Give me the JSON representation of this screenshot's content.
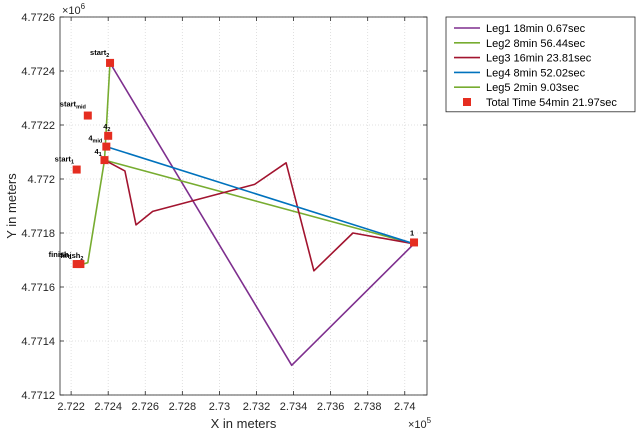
{
  "chart_data": {
    "type": "line",
    "xlabel": "X in meters",
    "ylabel": "Y in meters",
    "x_exponent": "×10",
    "x_exponent_power": "5",
    "y_exponent": "×10",
    "y_exponent_power": "6",
    "xlim": [
      2.7214,
      2.7412
    ],
    "ylim": [
      4.7712,
      4.7726
    ],
    "grid": true,
    "x_ticks": [
      2.722,
      2.724,
      2.726,
      2.728,
      2.73,
      2.732,
      2.734,
      2.736,
      2.738,
      2.74
    ],
    "x_tick_labels": [
      "2.722",
      "2.724",
      "2.726",
      "2.728",
      "2.73",
      "2.732",
      "2.734",
      "2.736",
      "2.738",
      "2.74"
    ],
    "y_ticks": [
      4.7712,
      4.7714,
      4.7716,
      4.7718,
      4.772,
      4.7722,
      4.7724,
      4.7726
    ],
    "y_tick_labels": [
      "4.7712",
      "4.7714",
      "4.7716",
      "4.7718",
      "4.772",
      "4.7722",
      "4.7724",
      "4.7726"
    ],
    "legend_position": "top-right",
    "series": [
      {
        "name": "Leg1 18min 0.67sec",
        "color": "#7e2f8e",
        "x": [
          2.7241,
          2.7339,
          2.7405
        ],
        "y": [
          4.77243,
          4.77131,
          4.77176
        ]
      },
      {
        "name": "Leg2 8min 56.44sec",
        "color": "#77ac30",
        "x": [
          2.7405,
          2.7238,
          2.7241
        ],
        "y": [
          4.77176,
          4.77207,
          4.77243
        ]
      },
      {
        "name": "Leg3 16min 23.81sec",
        "color": "#a2142f",
        "x": [
          2.7238,
          2.7249,
          2.7255,
          2.7264,
          2.7319,
          2.7336,
          2.7351,
          2.7372,
          2.7405
        ],
        "y": [
          4.77207,
          4.77203,
          4.77183,
          4.77188,
          4.77198,
          4.77206,
          4.77166,
          4.7718,
          4.77176
        ]
      },
      {
        "name": "Leg4 8min 52.02sec",
        "color": "#0072bd",
        "x": [
          2.7239,
          2.7405
        ],
        "y": [
          4.77212,
          4.77176
        ]
      },
      {
        "name": "Leg5 2min 9.03sec",
        "color": "#77ac30",
        "x": [
          2.7238,
          2.7229,
          2.7224
        ],
        "y": [
          4.77207,
          4.77169,
          4.77168
        ]
      }
    ],
    "markers": {
      "name": "Total Time 54min 21.97sec",
      "color": "#e52d20",
      "points": [
        {
          "label": "start",
          "label_sub": "2",
          "x": 2.7241,
          "y": 4.77243,
          "dx": -20,
          "dy": -8
        },
        {
          "label": "start",
          "label_sub": "mid",
          "x": 2.7229,
          "y": 4.772235,
          "dx": -28,
          "dy": -9
        },
        {
          "label": "start",
          "label_sub": "1",
          "x": 2.7223,
          "y": 4.772035,
          "dx": -22,
          "dy": -8
        },
        {
          "label": "4",
          "label_sub": "2",
          "x": 2.724,
          "y": 4.77216,
          "dx": -5,
          "dy": -7
        },
        {
          "label": "4",
          "label_sub": "mid",
          "x": 2.7239,
          "y": 4.77212,
          "dx": -18,
          "dy": -6
        },
        {
          "label": "4",
          "label_sub": "1",
          "x": 2.7238,
          "y": 4.77207,
          "dx": -10,
          "dy": -6
        },
        {
          "label": "1",
          "label_sub": "",
          "x": 2.7405,
          "y": 4.771765,
          "dx": -4,
          "dy": -7
        },
        {
          "label": "finish",
          "label_sub": "1",
          "x": 2.7223,
          "y": 4.771685,
          "dx": -28,
          "dy": -7
        },
        {
          "label": "finish",
          "label_sub": "2",
          "x": 2.7225,
          "y": 4.771685,
          "dx": -20,
          "dy": -6
        }
      ]
    }
  }
}
